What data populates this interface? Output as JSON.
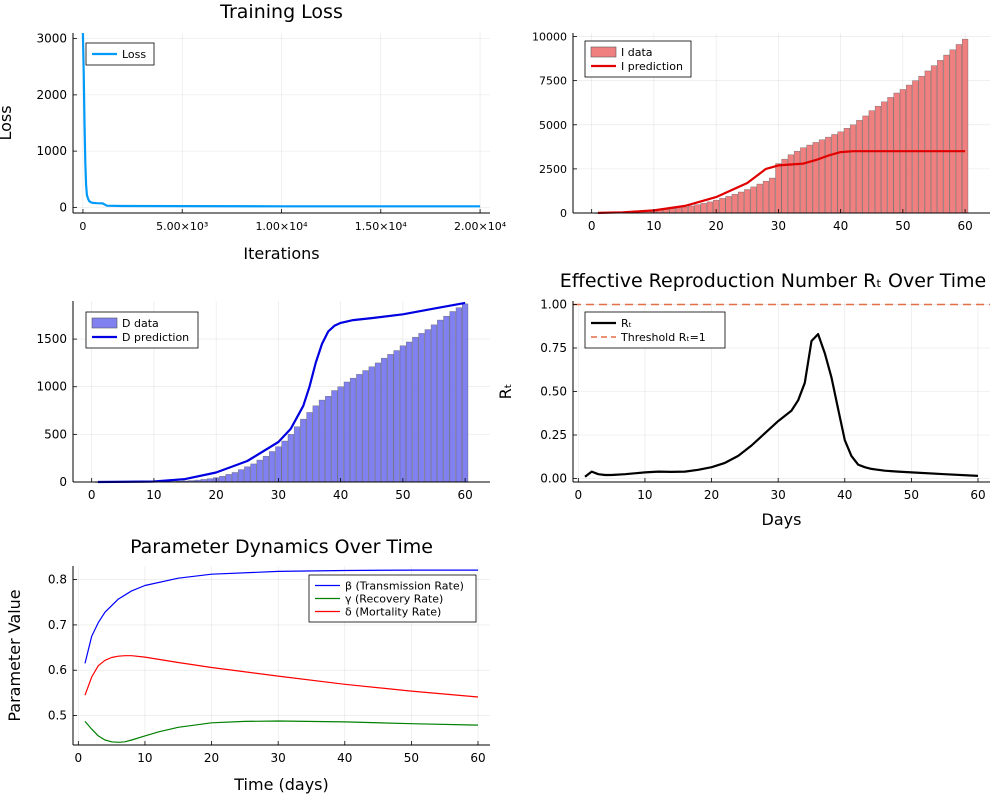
{
  "chart_data": [
    {
      "id": "loss",
      "type": "line",
      "title": "Training Loss",
      "xlabel": "Iterations",
      "ylabel": "Loss",
      "xlim": [
        -500,
        20500
      ],
      "ylim": [
        -100,
        3100
      ],
      "xticks": [
        0,
        5000,
        10000,
        15000,
        20000
      ],
      "xtick_labels": [
        "0",
        "5.00×10³",
        "1.00×10⁴",
        "1.50×10⁴",
        "2.00×10⁴"
      ],
      "yticks": [
        0,
        1000,
        2000,
        3000
      ],
      "ytick_labels": [
        "0",
        "1000",
        "2000",
        "3000"
      ],
      "grid": true,
      "legend": "top-left",
      "series": [
        {
          "name": "Loss",
          "color": "#009af9",
          "x": [
            0,
            40,
            80,
            120,
            160,
            200,
            260,
            320,
            400,
            500,
            700,
            1000,
            1200,
            2000,
            5000,
            10000,
            15000,
            20000
          ],
          "y": [
            3100,
            2400,
            1500,
            800,
            400,
            220,
            150,
            110,
            90,
            80,
            75,
            70,
            30,
            25,
            22,
            20,
            20,
            20
          ]
        }
      ]
    },
    {
      "id": "infected",
      "type": "bar",
      "title": "",
      "xlabel": "",
      "ylabel": "",
      "xlim": [
        -3,
        64
      ],
      "ylim": [
        0,
        10200
      ],
      "xticks": [
        0,
        10,
        20,
        30,
        40,
        50,
        60
      ],
      "xtick_labels": [
        "0",
        "10",
        "20",
        "30",
        "40",
        "50",
        "60"
      ],
      "yticks": [
        0,
        2500,
        5000,
        7500,
        10000
      ],
      "ytick_labels": [
        "0",
        "2500",
        "5000",
        "7500",
        "10000"
      ],
      "grid": true,
      "legend": "top-left",
      "bar_series": {
        "name": "I data",
        "color": "#f08080",
        "x_start": 1,
        "values": [
          5,
          12,
          20,
          30,
          42,
          55,
          70,
          88,
          110,
          135,
          165,
          200,
          240,
          290,
          340,
          400,
          470,
          545,
          630,
          725,
          830,
          940,
          1060,
          1190,
          1330,
          1480,
          1640,
          1800,
          1980,
          2800,
          3050,
          3300,
          3500,
          3700,
          3850,
          4000,
          4150,
          4300,
          4450,
          4600,
          4800,
          5000,
          5250,
          5500,
          5800,
          6050,
          6300,
          6550,
          6800,
          7000,
          7250,
          7500,
          7750,
          8050,
          8350,
          8650,
          8950,
          9250,
          9550,
          9850
        ]
      },
      "series": [
        {
          "name": "I prediction",
          "color": "#e00000",
          "x": [
            1,
            5,
            10,
            15,
            20,
            25,
            28,
            30,
            32,
            34,
            36,
            38,
            40,
            42,
            45,
            50,
            55,
            60
          ],
          "y": [
            5,
            40,
            150,
            400,
            900,
            1700,
            2500,
            2700,
            2750,
            2800,
            3000,
            3250,
            3450,
            3500,
            3500,
            3500,
            3500,
            3500
          ]
        }
      ]
    },
    {
      "id": "deaths",
      "type": "bar",
      "title": "",
      "xlabel": "",
      "ylabel": "",
      "xlim": [
        -3,
        64
      ],
      "ylim": [
        0,
        1900
      ],
      "xticks": [
        0,
        10,
        20,
        30,
        40,
        50,
        60
      ],
      "xtick_labels": [
        "0",
        "10",
        "20",
        "30",
        "40",
        "50",
        "60"
      ],
      "yticks": [
        0,
        500,
        1000,
        1500
      ],
      "ytick_labels": [
        "0",
        "500",
        "1000",
        "1500"
      ],
      "grid": true,
      "legend": "top-left",
      "bar_series": {
        "name": "D data",
        "color": "#8080f0",
        "x_start": 1,
        "values": [
          0,
          0,
          0,
          0,
          0,
          0,
          0,
          0,
          1,
          2,
          3,
          4,
          6,
          8,
          11,
          15,
          20,
          27,
          35,
          45,
          60,
          80,
          100,
          130,
          160,
          190,
          230,
          270,
          320,
          370,
          430,
          500,
          580,
          660,
          730,
          800,
          860,
          900,
          960,
          1000,
          1050,
          1090,
          1130,
          1170,
          1210,
          1250,
          1300,
          1340,
          1380,
          1430,
          1470,
          1520,
          1560,
          1600,
          1650,
          1700,
          1740,
          1790,
          1830,
          1870
        ]
      },
      "series": [
        {
          "name": "D prediction",
          "color": "#0000e0",
          "x": [
            1,
            10,
            15,
            20,
            25,
            30,
            32,
            34,
            35,
            36,
            37,
            38,
            39,
            40,
            42,
            45,
            50,
            55,
            60
          ],
          "y": [
            0,
            5,
            30,
            100,
            220,
            420,
            560,
            800,
            1000,
            1250,
            1450,
            1580,
            1640,
            1670,
            1700,
            1720,
            1760,
            1820,
            1880
          ]
        }
      ]
    },
    {
      "id": "rt",
      "type": "line",
      "title": "Effective Reproduction Number Rₜ Over Time",
      "xlabel": "Days",
      "ylabel": "Rₜ",
      "xlim": [
        -0.8,
        61.8
      ],
      "ylim": [
        -0.02,
        1.02
      ],
      "xticks": [
        0,
        10,
        20,
        30,
        40,
        50,
        60
      ],
      "xtick_labels": [
        "0",
        "10",
        "20",
        "30",
        "40",
        "50",
        "60"
      ],
      "yticks": [
        0,
        0.25,
        0.5,
        0.75,
        1.0
      ],
      "ytick_labels": [
        "0.00",
        "0.25",
        "0.50",
        "0.75",
        "1.00"
      ],
      "grid": true,
      "legend": "top-left",
      "series": [
        {
          "name": "Rₜ",
          "color": "#000000",
          "x": [
            1,
            2,
            3,
            4,
            5,
            7,
            10,
            12,
            14,
            16,
            18,
            20,
            22,
            24,
            26,
            28,
            30,
            32,
            33,
            34,
            35,
            36,
            37,
            38,
            39,
            40,
            41,
            42,
            43,
            44,
            45,
            46,
            48,
            50,
            55,
            60
          ],
          "y": [
            0.01,
            0.04,
            0.025,
            0.02,
            0.02,
            0.025,
            0.035,
            0.04,
            0.038,
            0.04,
            0.05,
            0.065,
            0.09,
            0.13,
            0.19,
            0.26,
            0.33,
            0.39,
            0.45,
            0.55,
            0.79,
            0.83,
            0.72,
            0.58,
            0.4,
            0.22,
            0.13,
            0.08,
            0.065,
            0.055,
            0.05,
            0.045,
            0.04,
            0.035,
            0.025,
            0.015
          ]
        },
        {
          "name": "Threshold Rₜ=1",
          "color": "#e26f46",
          "dash": true,
          "x": [
            -0.8,
            61.8
          ],
          "y": [
            1,
            1
          ]
        }
      ]
    },
    {
      "id": "params",
      "type": "line",
      "title": "Parameter Dynamics Over Time",
      "xlabel": "Time (days)",
      "ylabel": "Parameter Value",
      "xlim": [
        -0.8,
        61.8
      ],
      "ylim": [
        0.435,
        0.83
      ],
      "xticks": [
        0,
        10,
        20,
        30,
        40,
        50,
        60
      ],
      "xtick_labels": [
        "0",
        "10",
        "20",
        "30",
        "40",
        "50",
        "60"
      ],
      "yticks": [
        0.5,
        0.6,
        0.7,
        0.8
      ],
      "ytick_labels": [
        "0.5",
        "0.6",
        "0.7",
        "0.8"
      ],
      "grid": true,
      "legend": "top-right",
      "series": [
        {
          "name": "β (Transmission Rate)",
          "color": "#0000ff",
          "x": [
            1,
            2,
            3,
            4,
            6,
            8,
            10,
            15,
            20,
            30,
            40,
            50,
            60
          ],
          "y": [
            0.615,
            0.675,
            0.705,
            0.728,
            0.757,
            0.775,
            0.787,
            0.803,
            0.812,
            0.818,
            0.82,
            0.821,
            0.821
          ]
        },
        {
          "name": "γ (Recovery Rate)",
          "color": "#008000",
          "x": [
            1,
            2,
            3,
            4,
            5,
            6,
            7,
            8,
            10,
            12,
            15,
            20,
            25,
            30,
            40,
            50,
            60
          ],
          "y": [
            0.487,
            0.47,
            0.455,
            0.446,
            0.442,
            0.441,
            0.442,
            0.446,
            0.455,
            0.464,
            0.474,
            0.484,
            0.487,
            0.488,
            0.486,
            0.482,
            0.479
          ]
        },
        {
          "name": "δ (Mortality Rate)",
          "color": "#ff0000",
          "x": [
            1,
            2,
            3,
            4,
            5,
            6,
            7,
            8,
            10,
            15,
            20,
            30,
            40,
            50,
            60
          ],
          "y": [
            0.545,
            0.585,
            0.61,
            0.622,
            0.628,
            0.631,
            0.632,
            0.632,
            0.629,
            0.617,
            0.606,
            0.587,
            0.569,
            0.554,
            0.541
          ]
        }
      ]
    }
  ]
}
